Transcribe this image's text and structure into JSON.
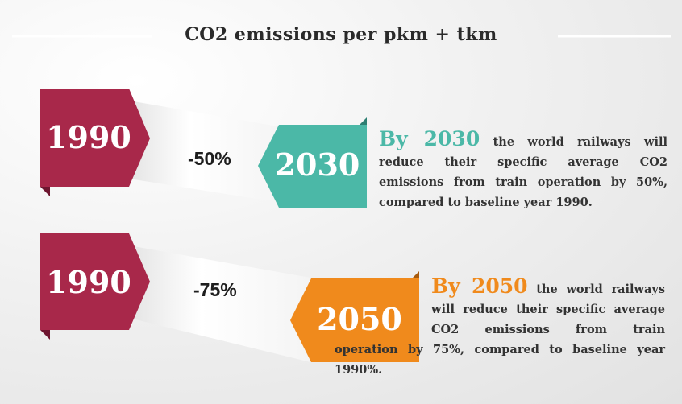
{
  "title": "CO2 emissions per pkm + tkm",
  "rows": [
    {
      "from": "1990",
      "change": "-50%",
      "to": "2030",
      "heading": "By 2030",
      "text": "the world railways will reduce their specific average CO2 emissions from train operation by 50%, compared to baseline year 1990."
    },
    {
      "from": "1990",
      "change": "-75%",
      "to": "2050",
      "heading": "By 2050",
      "text": "the world railways will reduce their specific average CO2 emissions from train operation by 75%, compared to baseline year 1990%."
    }
  ]
}
